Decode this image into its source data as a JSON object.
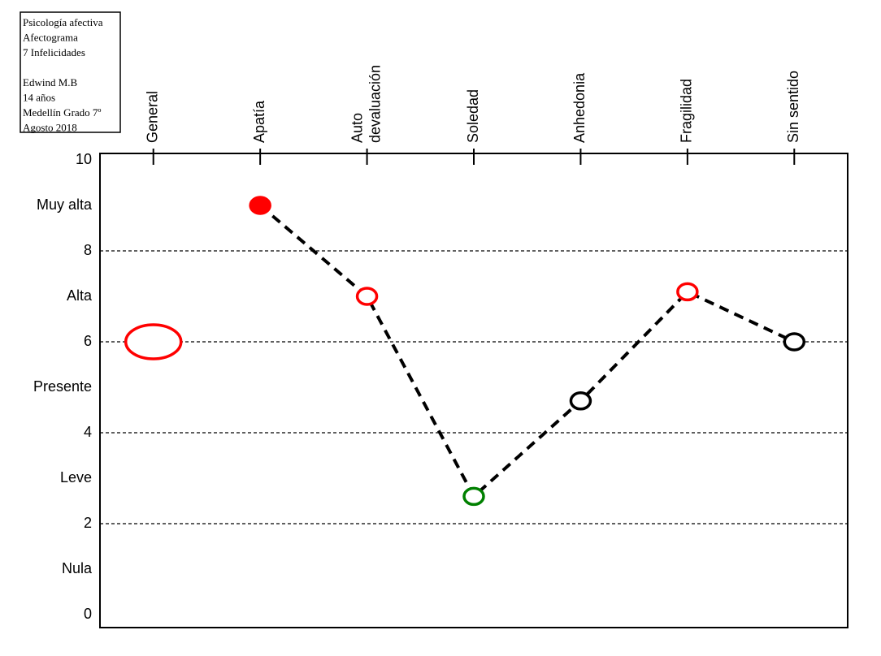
{
  "chart_data": {
    "type": "line",
    "note": [
      [
        "Psicología afectiva",
        "Afectograma",
        "7 Infelicidades"
      ],
      [
        "Edwind M.B",
        "14 años",
        "Medellín Grado 7º",
        "Agosto 2018"
      ]
    ],
    "categories": [
      [
        "General"
      ],
      [
        "Apatía"
      ],
      [
        "Auto",
        "devaluación"
      ],
      [
        "Soledad"
      ],
      [
        "Anhedonia"
      ],
      [
        "Fragilidad"
      ],
      [
        "Sin sentido"
      ]
    ],
    "values": [
      6,
      9,
      7,
      2.6,
      4.7,
      7.1,
      6
    ],
    "marker_colors": [
      "#ff0000",
      "#ff0000",
      "#ff0000",
      "#008000",
      "#000000",
      "#ff0000",
      "#000000"
    ],
    "marker_filled": [
      false,
      true,
      false,
      false,
      false,
      false,
      false
    ],
    "marker_large": [
      true,
      false,
      false,
      false,
      false,
      false,
      false
    ],
    "joined": [
      false,
      true,
      true,
      true,
      true,
      true,
      true
    ],
    "line_color": "#000000",
    "ylim": [
      0,
      10
    ],
    "yticks": [
      0,
      {
        "value": 1,
        "label": "Nula"
      },
      2,
      {
        "value": 3,
        "label": "Leve"
      },
      4,
      {
        "value": 5,
        "label": "Presente"
      },
      6,
      {
        "value": 7,
        "label": "Alta"
      },
      8,
      {
        "value": 9,
        "label": "Muy alta"
      },
      10
    ],
    "grid": true
  }
}
